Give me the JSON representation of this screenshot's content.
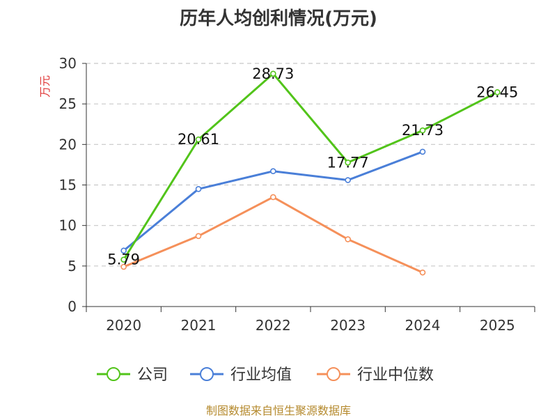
{
  "chart_data": {
    "type": "line",
    "title": "历年人均创利情况(万元)",
    "ylabel": "万元",
    "xlabel": "",
    "categories": [
      "2020",
      "2021",
      "2022",
      "2023",
      "2024",
      "2025"
    ],
    "ylim": [
      0,
      30
    ],
    "yticks": [
      "0",
      "5",
      "10",
      "15",
      "20",
      "25",
      "30"
    ],
    "grid": "horizontal dashed",
    "legend_position": "bottom",
    "series": [
      {
        "name": "公司",
        "color": "#52c41a",
        "values": [
          5.79,
          20.61,
          28.73,
          17.77,
          21.73,
          26.45
        ],
        "labels": [
          "5.79",
          "20.61",
          "28.73",
          "17.77",
          "21.73",
          "26.45"
        ]
      },
      {
        "name": "行业均值",
        "color": "#4a7fd8",
        "values": [
          6.9,
          14.5,
          16.7,
          15.6,
          19.1,
          null
        ]
      },
      {
        "name": "行业中位数",
        "color": "#f5905a",
        "values": [
          4.9,
          8.7,
          13.5,
          8.3,
          4.2,
          null
        ]
      }
    ]
  },
  "footer": "制图数据来自恒生聚源数据库"
}
